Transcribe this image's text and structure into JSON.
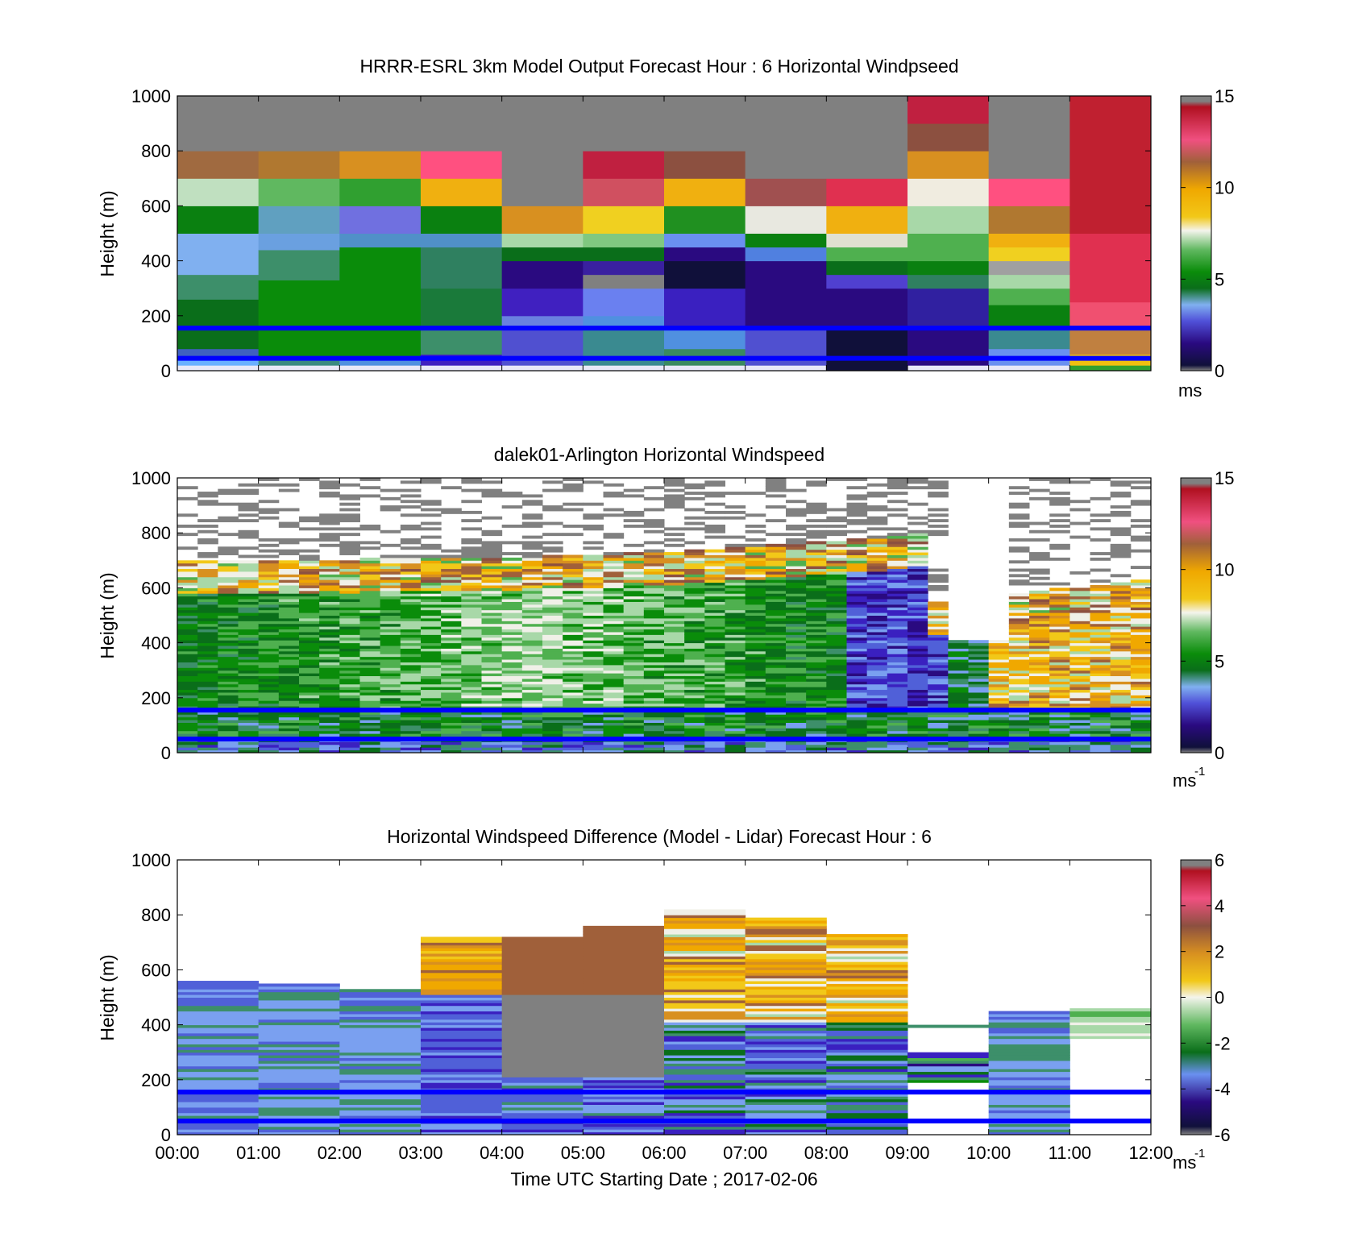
{
  "figure": {
    "xlabel": "Time UTC  Starting Date ; 2017-02-06",
    "colors": {
      "speed_scale": [
        "#10103a",
        "#2a0a80",
        "#3a20c0",
        "#5060d8",
        "#7aa0f0",
        "#3d8f6a",
        "#0a6e1a",
        "#0a8c0a",
        "#4fb04f",
        "#a8d8a8",
        "#f0f0e8",
        "#f2c818",
        "#f0a800",
        "#d89020",
        "#a0603a",
        "#8c5040",
        "#e03050",
        "#b01020",
        "#808080"
      ],
      "hub_line": "#0000ff",
      "no_data": "#808080"
    }
  },
  "chart_data": [
    {
      "type": "heatmap",
      "title": "HRRR-ESRL 3km Model Output   Forecast Hour : 6 Horizontal Windpseed",
      "ylabel": "Height (m)",
      "ylim": [
        0,
        1000
      ],
      "yticks": [
        "0",
        "200",
        "400",
        "600",
        "800",
        "1000"
      ],
      "xlim": [
        "00:00",
        "12:00"
      ],
      "colorbar": {
        "range": [
          0,
          15
        ],
        "ticks": [
          "0",
          "5",
          "10",
          "15"
        ],
        "unit": "ms",
        "unit_sup": ""
      },
      "hub_lines": [
        45,
        155
      ],
      "columns": [
        {
          "time": "00:00",
          "levels": [
            [
              0,
              "#e8e8f8"
            ],
            [
              20,
              "#6ab0ff"
            ],
            [
              40,
              "#4060c0"
            ],
            [
              80,
              "#0a6e1a"
            ],
            [
              160,
              "#0a6e1a"
            ],
            [
              260,
              "#3d8f6a"
            ],
            [
              350,
              "#80b0f0"
            ],
            [
              500,
              "#0a8010"
            ],
            [
              600,
              "#c0e0c0"
            ],
            [
              700,
              "#a06a40"
            ],
            [
              800,
              "#808080"
            ]
          ]
        },
        {
          "time": "01:00",
          "levels": [
            [
              0,
              "#e8e8f8"
            ],
            [
              20,
              "#3a8a80"
            ],
            [
              40,
              "#0a8c0a"
            ],
            [
              160,
              "#0a8c0a"
            ],
            [
              330,
              "#3d8f6a"
            ],
            [
              440,
              "#6aa0e0"
            ],
            [
              500,
              "#60a0c0"
            ],
            [
              600,
              "#60b860"
            ],
            [
              700,
              "#b07830"
            ],
            [
              800,
              "#808080"
            ]
          ]
        },
        {
          "time": "02:00",
          "levels": [
            [
              0,
              "#e8e8f8"
            ],
            [
              20,
              "#5090e0"
            ],
            [
              40,
              "#0a8c0a"
            ],
            [
              160,
              "#0a8c0a"
            ],
            [
              450,
              "#5090c8"
            ],
            [
              500,
              "#7070e0"
            ],
            [
              600,
              "#30a030"
            ],
            [
              700,
              "#d89020"
            ],
            [
              800,
              "#808080"
            ]
          ]
        },
        {
          "time": "03:00",
          "levels": [
            [
              0,
              "#e8e8f8"
            ],
            [
              20,
              "#4020c0"
            ],
            [
              60,
              "#3d8f6a"
            ],
            [
              160,
              "#1a7a3a"
            ],
            [
              300,
              "#2f8060"
            ],
            [
              450,
              "#5090c8"
            ],
            [
              500,
              "#0a8010"
            ],
            [
              600,
              "#f0b010"
            ],
            [
              700,
              "#ff5080"
            ],
            [
              800,
              "#808080"
            ]
          ]
        },
        {
          "time": "04:00",
          "levels": [
            [
              0,
              "#e8e8f8"
            ],
            [
              20,
              "#5050d0"
            ],
            [
              160,
              "#6a80e0"
            ],
            [
              200,
              "#4020c0"
            ],
            [
              300,
              "#2a0a80"
            ],
            [
              400,
              "#0a6e1a"
            ],
            [
              450,
              "#a8d8a8"
            ],
            [
              500,
              "#d89020"
            ],
            [
              600,
              "#808080"
            ]
          ]
        },
        {
          "time": "05:00",
          "levels": [
            [
              0,
              "#e8e8f8"
            ],
            [
              20,
              "#3a8a90"
            ],
            [
              160,
              "#5090e0"
            ],
            [
              200,
              "#6a80f0"
            ],
            [
              300,
              "#808080"
            ],
            [
              350,
              "#3a20a0"
            ],
            [
              400,
              "#0a6e1a"
            ],
            [
              450,
              "#80c880"
            ],
            [
              500,
              "#f0d020"
            ],
            [
              600,
              "#d05060"
            ],
            [
              700,
              "#c02040"
            ],
            [
              800,
              "#808080"
            ]
          ]
        },
        {
          "time": "06:00",
          "levels": [
            [
              0,
              "#e8e8f8"
            ],
            [
              20,
              "#3a8a60"
            ],
            [
              80,
              "#5090e0"
            ],
            [
              160,
              "#3a20c0"
            ],
            [
              300,
              "#10103a"
            ],
            [
              400,
              "#2a0a80"
            ],
            [
              450,
              "#6a90f0"
            ],
            [
              500,
              "#209020"
            ],
            [
              600,
              "#f0b010"
            ],
            [
              700,
              "#8c5040"
            ],
            [
              800,
              "#808080"
            ]
          ]
        },
        {
          "time": "07:00",
          "levels": [
            [
              0,
              "#e8e8f8"
            ],
            [
              20,
              "#5050d0"
            ],
            [
              160,
              "#2a0a80"
            ],
            [
              400,
              "#5080e0"
            ],
            [
              450,
              "#0a8010"
            ],
            [
              500,
              "#e8e8e0"
            ],
            [
              600,
              "#a05050"
            ],
            [
              700,
              "#808080"
            ]
          ]
        },
        {
          "time": "08:00",
          "levels": [
            [
              0,
              "#10103a"
            ],
            [
              160,
              "#2a0a80"
            ],
            [
              300,
              "#5040d0"
            ],
            [
              350,
              "#0a6e1a"
            ],
            [
              400,
              "#4fb04f"
            ],
            [
              450,
              "#e0e0d0"
            ],
            [
              500,
              "#f0b010"
            ],
            [
              600,
              "#e03050"
            ],
            [
              700,
              "#808080"
            ]
          ]
        },
        {
          "time": "09:00",
          "levels": [
            [
              0,
              "#e8e8f8"
            ],
            [
              20,
              "#2a0a80"
            ],
            [
              160,
              "#3020a0"
            ],
            [
              300,
              "#2f8060"
            ],
            [
              350,
              "#0a8010"
            ],
            [
              400,
              "#4fb04f"
            ],
            [
              500,
              "#a8d8a8"
            ],
            [
              600,
              "#f0ece0"
            ],
            [
              700,
              "#d89020"
            ],
            [
              800,
              "#8c5040"
            ],
            [
              900,
              "#c02040"
            ],
            [
              1000,
              "#c02040"
            ]
          ]
        },
        {
          "time": "10:00",
          "levels": [
            [
              0,
              "#e8e8f8"
            ],
            [
              20,
              "#6a90f0"
            ],
            [
              80,
              "#3a8a90"
            ],
            [
              160,
              "#0a8010"
            ],
            [
              240,
              "#4fb04f"
            ],
            [
              300,
              "#a8d8a8"
            ],
            [
              350,
              "#a0a0a0"
            ],
            [
              400,
              "#f0d020"
            ],
            [
              450,
              "#f0b010"
            ],
            [
              500,
              "#b07830"
            ],
            [
              600,
              "#ff5080"
            ],
            [
              700,
              "#808080"
            ]
          ]
        },
        {
          "time": "11:00",
          "levels": [
            [
              0,
              "#30a030"
            ],
            [
              20,
              "#f0c010"
            ],
            [
              60,
              "#c08040"
            ],
            [
              160,
              "#f05070"
            ],
            [
              250,
              "#e03050"
            ],
            [
              500,
              "#c02030"
            ],
            [
              1000,
              "#c02030"
            ]
          ]
        }
      ]
    },
    {
      "type": "heatmap",
      "title": "dalek01-Arlington  Horizontal Windspeed",
      "ylabel": "Height (m)",
      "ylim": [
        0,
        1000
      ],
      "yticks": [
        "0",
        "200",
        "400",
        "600",
        "800",
        "1000"
      ],
      "xlim": [
        "00:00",
        "12:00"
      ],
      "colorbar": {
        "range": [
          0,
          15
        ],
        "ticks": [
          "0",
          "5",
          "10",
          "15"
        ],
        "unit": "ms",
        "unit_sup": "-1"
      },
      "hub_lines": [
        50,
        155
      ]
    },
    {
      "type": "heatmap",
      "title": "Horizontal Windspeed Difference (Model - Lidar) Forecast Hour : 6",
      "ylabel": "Height (m)",
      "ylim": [
        0,
        1000
      ],
      "yticks": [
        "0",
        "200",
        "400",
        "600",
        "800",
        "1000"
      ],
      "xlim": [
        "00:00",
        "12:00"
      ],
      "xticks": [
        "00:00",
        "01:00",
        "02:00",
        "03:00",
        "04:00",
        "05:00",
        "06:00",
        "07:00",
        "08:00",
        "09:00",
        "10:00",
        "11:00",
        "12:00"
      ],
      "colorbar": {
        "range": [
          -6,
          6
        ],
        "ticks": [
          "-6",
          "-4",
          "-2",
          "0",
          "2",
          "4",
          "6"
        ],
        "unit": "ms",
        "unit_sup": "-1"
      },
      "hub_lines": [
        50,
        155
      ]
    }
  ]
}
